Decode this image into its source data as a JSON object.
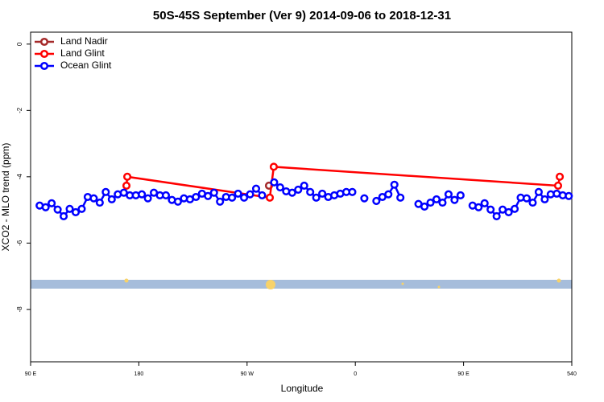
{
  "chart_data": {
    "type": "line",
    "title": "50S-45S September (Ver 9)   2014-09-06 to 2018-12-31",
    "x_label": "Longitude",
    "y_label": "XCO2 - MLO trend (ppm)",
    "xlim": [
      90,
      540
    ],
    "xticks": [
      {
        "value": 90,
        "label": "90 E"
      },
      180,
      {
        "value": 270,
        "label": "90 W"
      },
      {
        "value": 360,
        "label": "0"
      },
      {
        "value": 450,
        "label": "90 E"
      },
      540
    ],
    "ylim": [
      -9.58,
      0.36
    ],
    "yticks": [
      0,
      -2,
      -4,
      -6,
      -8
    ],
    "grid": false,
    "legend": "top-left",
    "series": [
      {
        "name": "Land Nadir",
        "color": "#a52a2a",
        "x": [
          288.2
        ],
        "values": [
          -4.27
        ]
      },
      {
        "name": "Land Glint",
        "color": "#ff0000",
        "x": [
          169.7,
          170.4,
          288.9,
          292.2,
          528.6,
          530.0
        ],
        "values": [
          -4.27,
          -4.0,
          -4.63,
          -3.7,
          -4.27,
          -4.0
        ]
      },
      {
        "name": "Ocean Glint",
        "color": "#0000ff",
        "x": [
          97.5,
          102.5,
          107.5,
          112.5,
          117.5,
          122.5,
          127.5,
          132.5,
          137.5,
          142.5,
          147.5,
          152.5,
          157.5,
          162.5,
          167.5,
          172.5,
          177.5,
          182.5,
          187.5,
          192.5,
          197.5,
          202.5,
          207.5,
          212.5,
          217.5,
          222.5,
          227.5,
          232.5,
          237.5,
          242.5,
          247.5,
          252.5,
          257.5,
          262.5,
          267.5,
          272.5,
          277.5,
          282.5,
          287.5,
          292.5,
          297.5,
          302.5,
          307.5,
          312.5,
          317.5,
          322.5,
          327.5,
          332.5,
          337.5,
          342.5,
          347.5,
          352.5,
          357.5,
          362.5,
          367.5,
          372.5,
          377.5,
          382.5,
          387.5,
          392.5,
          397.5,
          402.5,
          407.5,
          412.5,
          417.5,
          422.5,
          427.5,
          432.5,
          437.5,
          442.5,
          447.5,
          452.5,
          457.5,
          462.5,
          467.5,
          472.5,
          477.5,
          482.5,
          487.5,
          492.5,
          497.5,
          502.5,
          507.5,
          512.5,
          517.5,
          522.5,
          527.5,
          532.5,
          537.5
        ],
        "values": [
          -4.87,
          -4.92,
          -4.8,
          -4.99,
          -5.19,
          -4.97,
          -5.07,
          -4.97,
          -4.61,
          -4.65,
          -4.78,
          -4.46,
          -4.68,
          -4.53,
          -4.48,
          -4.56,
          -4.56,
          -4.53,
          -4.65,
          -4.48,
          -4.56,
          -4.56,
          -4.7,
          -4.75,
          -4.65,
          -4.68,
          -4.61,
          -4.51,
          -4.58,
          -4.48,
          -4.75,
          -4.61,
          -4.63,
          -4.51,
          -4.63,
          -4.53,
          -4.36,
          -4.56,
          null,
          -4.17,
          -4.32,
          -4.44,
          -4.48,
          -4.39,
          -4.27,
          -4.46,
          -4.63,
          -4.51,
          -4.61,
          -4.56,
          -4.51,
          -4.46,
          -4.46,
          null,
          -4.65,
          null,
          -4.73,
          -4.61,
          -4.53,
          -4.24,
          -4.63,
          null,
          null,
          -4.82,
          -4.9,
          -4.78,
          -4.68,
          -4.78,
          -4.53,
          -4.7,
          -4.56,
          null,
          -4.87,
          -4.92,
          -4.8,
          -4.99,
          -5.19,
          -4.99,
          -5.07,
          -4.97,
          -4.63,
          -4.65,
          -4.78,
          -4.46,
          -4.68,
          -4.53,
          -4.51,
          -4.56,
          -4.58
        ]
      }
    ]
  }
}
